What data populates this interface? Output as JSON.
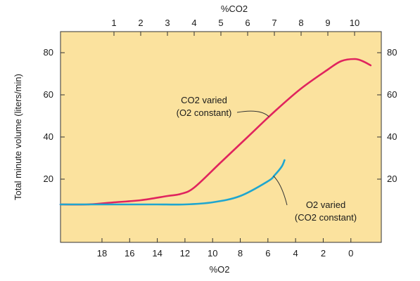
{
  "chart_data": {
    "type": "line",
    "title": "",
    "ylabel": "Total minute volume (liters/min)",
    "xlabel_top": "%CO2",
    "xlabel_bottom": "%O2",
    "ylim": [
      -10,
      90
    ],
    "y_ticks": [
      20,
      40,
      60,
      80
    ],
    "x_top": {
      "lim": [
        -1,
        11
      ],
      "ticks": [
        1,
        2,
        3,
        4,
        5,
        6,
        7,
        8,
        9,
        10
      ]
    },
    "x_bottom": {
      "lim": [
        21,
        -2.2
      ],
      "ticks": [
        18,
        16,
        14,
        12,
        10,
        8,
        6,
        4,
        2,
        0
      ]
    },
    "grid": false,
    "colors": {
      "plot_bg": "#fbe29e",
      "co2_line": "#e0245e",
      "o2_line": "#1fa6cf",
      "axis": "#333333"
    },
    "series": [
      {
        "name": "CO2 varied (O2 constant)",
        "axis": "top",
        "color": "#e0245e",
        "x": [
          -1,
          0,
          1,
          2,
          3,
          3.5,
          4,
          5,
          6,
          7,
          8,
          9,
          9.5,
          10,
          10.3,
          10.6
        ],
        "y": [
          8,
          8,
          9,
          10,
          12,
          13,
          16,
          28,
          40,
          52,
          63,
          72,
          76,
          77,
          76,
          74
        ]
      },
      {
        "name": "O2 varied (CO2 constant)",
        "axis": "bottom",
        "color": "#1fa6cf",
        "x": [
          21,
          18,
          16,
          14,
          12,
          10,
          8,
          6,
          5.5,
          5,
          4.8
        ],
        "y": [
          8,
          8,
          8,
          8,
          8,
          9,
          12,
          19,
          22,
          26,
          29
        ]
      }
    ],
    "annotations": {
      "co2": {
        "line1": "CO2 varied",
        "line2": "(O2 constant)"
      },
      "o2": {
        "line1": "O2 varied",
        "line2": "(CO2 constant)"
      }
    }
  }
}
